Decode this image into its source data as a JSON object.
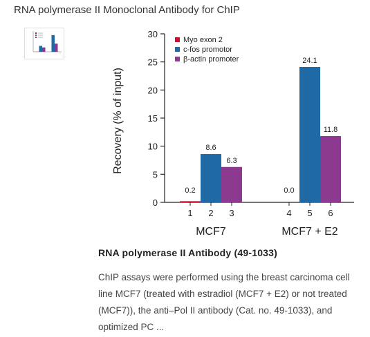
{
  "page": {
    "title": "RNA polymerase II Monoclonal Antibody for ChIP"
  },
  "caption": {
    "title": "RNA polymerase II Antibody (49-1033)",
    "text": "ChIP assays were performed using the breast carcinoma cell line MCF7 (treated with estradiol (MCF7 + E2) or not treated (MCF7)), the anti–Pol II antibody (Cat. no. 49-1033), and optimized PC ..."
  },
  "chart_data": {
    "type": "bar",
    "ylabel": "Recovery (% of input)",
    "ylim": [
      0,
      30
    ],
    "yticks": [
      0,
      5,
      10,
      15,
      20,
      25,
      30
    ],
    "groups": [
      {
        "label": "MCF7",
        "lanes": [
          "1",
          "2",
          "3"
        ],
        "values": [
          0.2,
          8.6,
          6.3
        ],
        "value_labels": [
          "0.2",
          "8.6",
          "6.3"
        ]
      },
      {
        "label": "MCF7 + E2",
        "lanes": [
          "4",
          "5",
          "6"
        ],
        "values": [
          0.0,
          24.1,
          11.8
        ],
        "value_labels": [
          "0.0",
          "24.1",
          "11.8"
        ]
      }
    ],
    "series": [
      {
        "name": "Myo exon 2",
        "color": "#c8102e"
      },
      {
        "name": "c-fos promotor",
        "color": "#1f6aa5"
      },
      {
        "name": "β-actin promoter",
        "color": "#8b3a8f"
      }
    ],
    "legend": "top-left"
  }
}
